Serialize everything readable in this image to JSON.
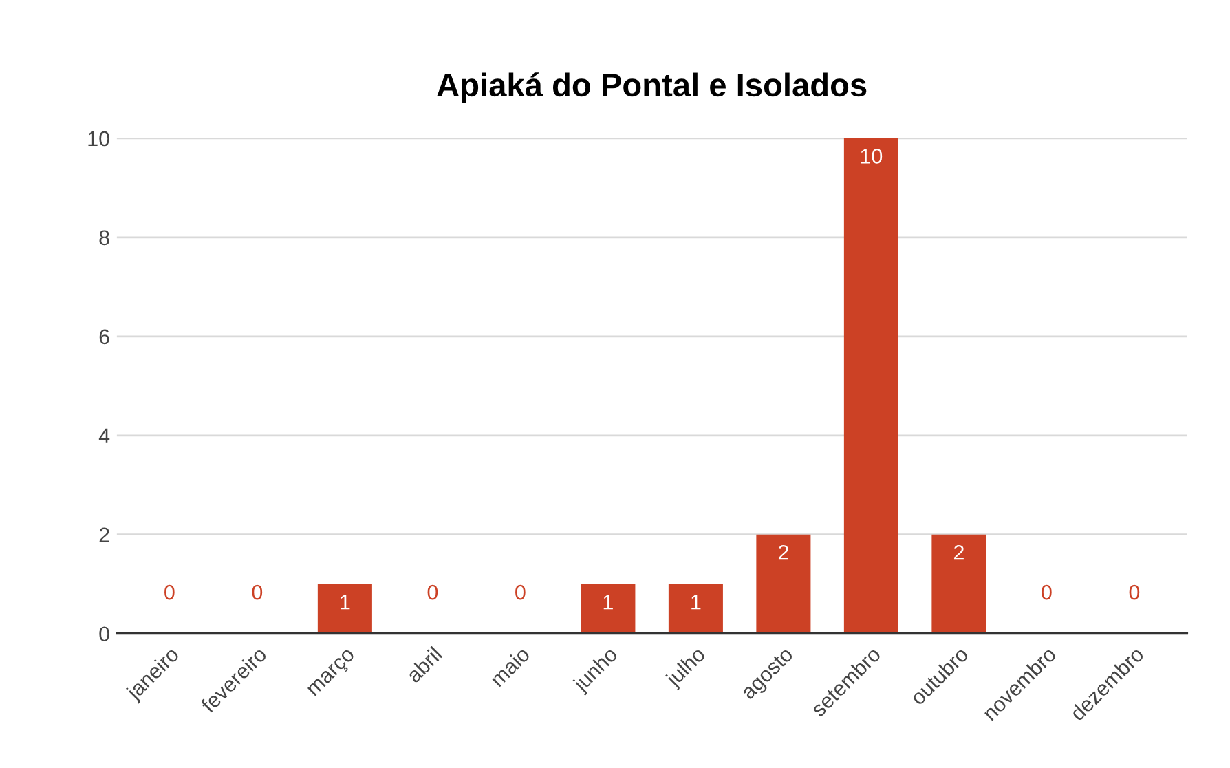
{
  "chart_data": {
    "type": "bar",
    "title": "Apiaká do Pontal e Isolados",
    "categories": [
      "janeiro",
      "fevereiro",
      "março",
      "abril",
      "maio",
      "junho",
      "julho",
      "agosto",
      "setembro",
      "outubro",
      "novembro",
      "dezembro"
    ],
    "values": [
      0,
      0,
      1,
      0,
      0,
      1,
      1,
      2,
      10,
      2,
      0,
      0
    ],
    "color": "#cc4125",
    "ylim": [
      0,
      10
    ],
    "yticks": [
      0,
      2,
      4,
      6,
      8,
      10
    ],
    "grid": "y",
    "data_labels": true
  }
}
